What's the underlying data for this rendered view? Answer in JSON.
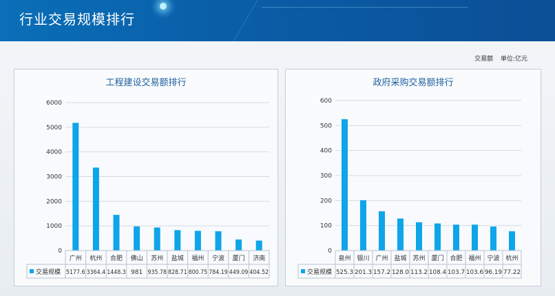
{
  "header": {
    "title": "行业交易规模排行"
  },
  "unit_note": {
    "metric": "交易额",
    "unit": "单位:亿元"
  },
  "colors": {
    "bar": "#0ea5e9",
    "header": "#0a5ea8",
    "title": "#1d5f9e"
  },
  "chart_data": [
    {
      "type": "bar",
      "title": "工程建设交易额排行",
      "legend": "交易规模",
      "categories": [
        "广州",
        "杭州",
        "合肥",
        "佛山",
        "苏州",
        "盐城",
        "福州",
        "宁波",
        "厦门",
        "济南"
      ],
      "values": [
        5177.6,
        3364.4,
        1448.3,
        981,
        935.78,
        828.71,
        800.75,
        784.19,
        449.09,
        404.52
      ],
      "value_labels": [
        "5177.6",
        "3364.4",
        "1448.3",
        "981",
        "935.78",
        "828.71",
        "800.75",
        "784.19",
        "449.09",
        "404.52"
      ],
      "yticks": [
        0,
        1000,
        2000,
        3000,
        4000,
        5000,
        6000
      ],
      "ylim": [
        0,
        6000
      ]
    },
    {
      "type": "bar",
      "title": "政府采购交易额排行",
      "legend": "交易规模",
      "categories": [
        "泉州",
        "银川",
        "广州",
        "盐城",
        "苏州",
        "厦门",
        "合肥",
        "福州",
        "宁波",
        "杭州"
      ],
      "values": [
        525.3,
        201.3,
        157.2,
        128.0,
        113.2,
        108.4,
        103.7,
        103.6,
        96.19,
        77.22
      ],
      "value_labels": [
        "525.3",
        "201.3",
        "157.2",
        "128.0",
        "113.2",
        "108.4",
        "103.7",
        "103.6",
        "96.19",
        "77.22"
      ],
      "yticks": [
        0,
        100,
        200,
        300,
        400,
        500,
        600
      ],
      "ylim": [
        0,
        600
      ]
    }
  ]
}
